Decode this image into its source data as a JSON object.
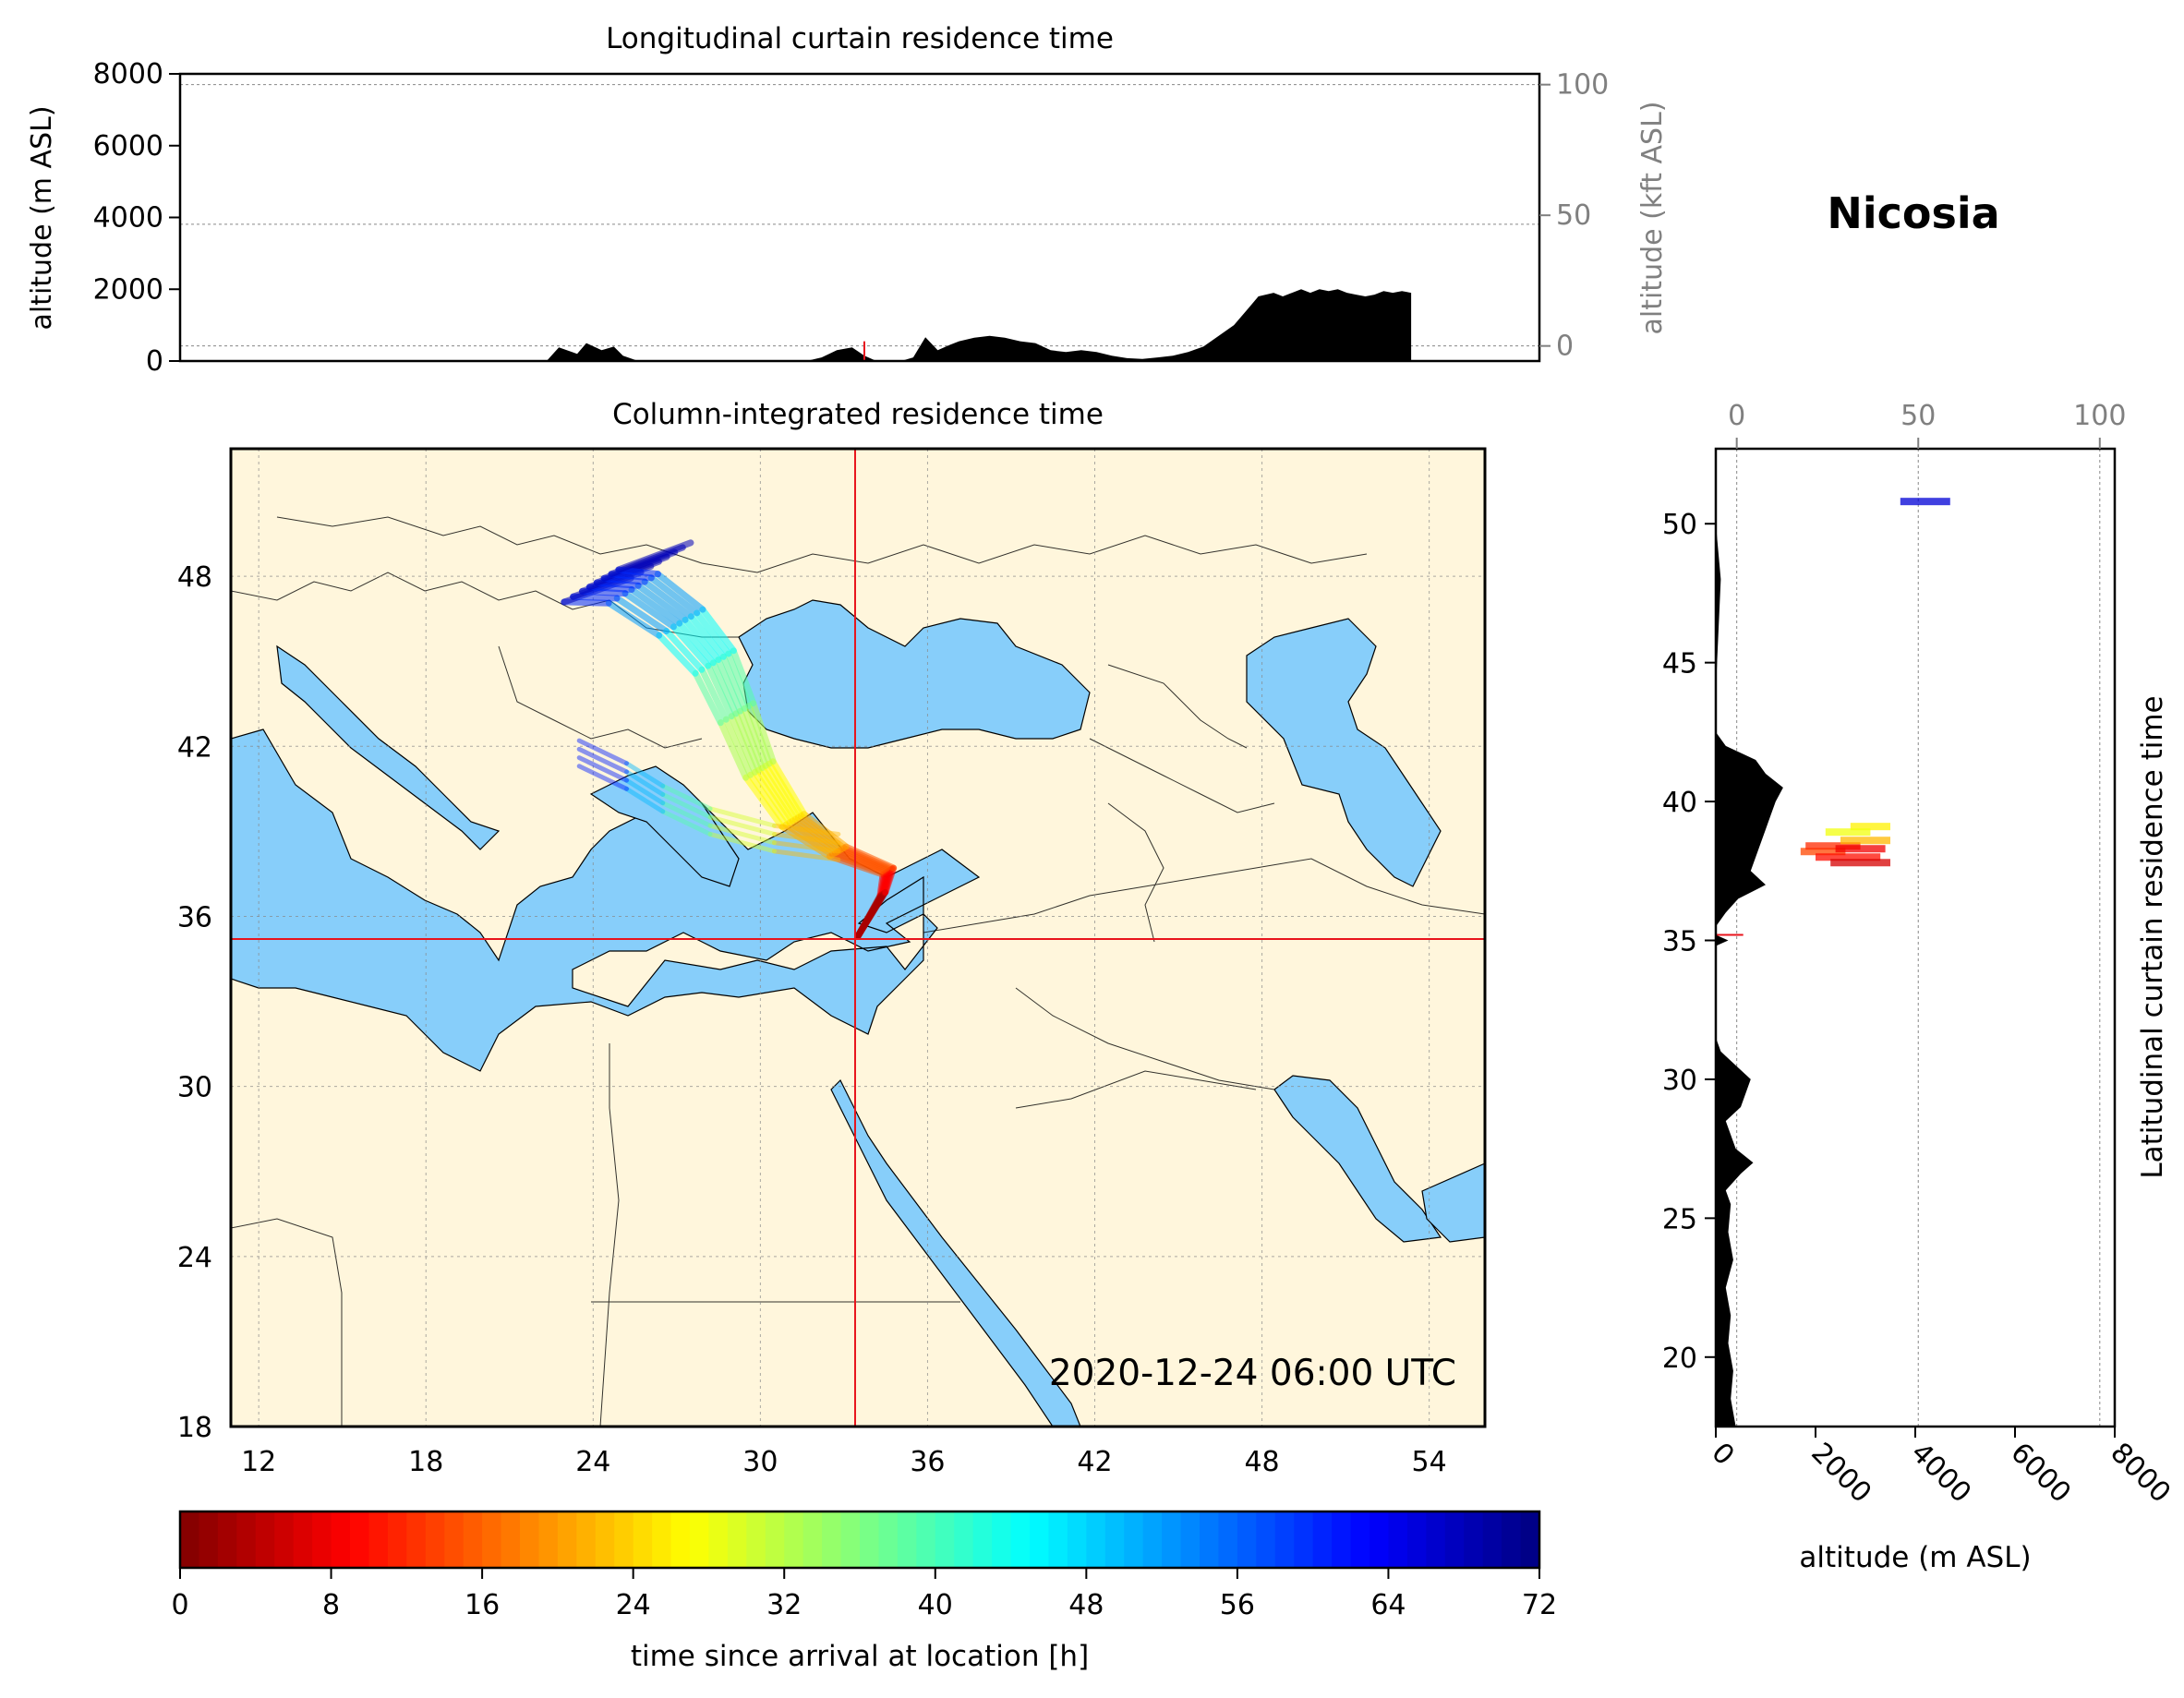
{
  "location_name": "Nicosia",
  "timestamp": "2020-12-24 06:00 UTC",
  "colors": {
    "sea": "#87cefa",
    "land": "#fff6dc",
    "crosshair": "#e8141c",
    "terrain": "#000000"
  },
  "chart_data": [
    {
      "id": "longitudinal",
      "type": "area",
      "title": "Longitudinal curtain residence time",
      "xlabel": "",
      "ylabel": "altitude (m ASL)",
      "ylabel_right": "altitude (kft ASL)",
      "ylim": [
        0,
        8000
      ],
      "yticks": [
        "0",
        "2000",
        "4000",
        "6000",
        "8000"
      ],
      "yticks_right": [
        "0",
        "50",
        "100"
      ],
      "xlim": [
        11,
        55.5
      ],
      "terrain_profile": {
        "x": [
          11,
          23.0,
          23.4,
          24.0,
          24.3,
          24.8,
          25.2,
          25.5,
          26.0,
          31.5,
          32.0,
          32.5,
          33.0,
          33.4,
          33.8,
          34.6,
          35.0,
          35.4,
          35.8,
          36.2,
          36.5,
          37.0,
          37.5,
          38.0,
          38.5,
          39.0,
          39.5,
          40.0,
          40.5,
          41.0,
          41.5,
          42.0,
          42.5,
          43.0,
          43.5,
          44.0,
          44.5,
          45.0,
          45.5,
          46.0,
          46.3,
          46.8,
          47.1,
          47.4,
          47.7,
          48.0,
          48.3,
          48.6,
          48.9,
          49.2,
          49.5,
          49.8,
          50.1,
          50.4,
          50.7,
          51.0,
          51.3,
          51.3,
          55.5
        ],
        "y": [
          0,
          0,
          380,
          200,
          500,
          300,
          400,
          150,
          0,
          0,
          100,
          300,
          380,
          150,
          0,
          0,
          100,
          660,
          300,
          450,
          550,
          650,
          700,
          650,
          550,
          500,
          300,
          250,
          300,
          250,
          150,
          80,
          60,
          100,
          150,
          250,
          400,
          700,
          1000,
          1500,
          1800,
          1900,
          1800,
          1900,
          2000,
          1900,
          2000,
          1950,
          2000,
          1900,
          1850,
          1800,
          1850,
          1950,
          1900,
          1950,
          1900,
          0,
          0
        ]
      },
      "reference_lines_m": [
        420,
        7700
      ]
    },
    {
      "id": "map",
      "type": "scatter",
      "title": "Column-integrated residence time",
      "xlabel": "",
      "ylabel": "",
      "xlim": [
        11,
        56
      ],
      "ylim": [
        18,
        52.5
      ],
      "xticks": [
        "12",
        "18",
        "24",
        "30",
        "36",
        "42",
        "48",
        "54"
      ],
      "yticks": [
        "18",
        "24",
        "30",
        "36",
        "42",
        "48"
      ],
      "crosshair": {
        "lon": 33.4,
        "lat": 35.2
      },
      "grid": true,
      "trajectory_bundle": [
        {
          "hours": 0,
          "lon": 33.5,
          "lat": 35.3
        },
        {
          "hours": 6,
          "lon": 34.4,
          "lat": 36.8
        },
        {
          "hours": 12,
          "lon": 34.6,
          "lat": 37.6
        },
        {
          "hours": 18,
          "lon": 32.8,
          "lat": 38.3
        },
        {
          "hours": 24,
          "lon": 31.2,
          "lat": 39.4
        },
        {
          "hours": 30,
          "lon": 30.0,
          "lat": 41.2
        },
        {
          "hours": 36,
          "lon": 29.2,
          "lat": 43.2
        },
        {
          "hours": 42,
          "lon": 28.4,
          "lat": 45.0
        },
        {
          "hours": 48,
          "lon": 27.2,
          "lat": 46.4
        },
        {
          "hours": 56,
          "lon": 25.5,
          "lat": 47.6
        },
        {
          "hours": 64,
          "lon": 24.0,
          "lat": 47.7
        },
        {
          "hours": 72,
          "lon": 26.5,
          "lat": 48.6
        }
      ]
    },
    {
      "id": "latitudinal",
      "type": "area",
      "title": "Latitudinal curtain residence time",
      "xlabel": "altitude (m ASL)",
      "xlabel_top": "",
      "ylabel": "Latitudinal curtain residence time",
      "xlim": [
        0,
        8000
      ],
      "xticks": [
        "0",
        "2000",
        "4000",
        "6000",
        "8000"
      ],
      "xticks_top": [
        "0",
        "50",
        "100"
      ],
      "yticks": [
        "20",
        "25",
        "30",
        "35",
        "40",
        "45",
        "50"
      ],
      "ylim": [
        17.5,
        52.7
      ],
      "terrain_profile": {
        "lat": [
          17.5,
          18.5,
          19.5,
          20.5,
          21.5,
          22.5,
          23.5,
          24.5,
          25.5,
          26.0,
          26.6,
          27.0,
          27.5,
          28.0,
          28.5,
          29.0,
          29.5,
          30.0,
          30.5,
          31.0,
          31.5,
          33.5,
          34.8,
          35.0,
          35.2,
          35.5,
          36.0,
          36.5,
          37.0,
          37.5,
          38.0,
          38.5,
          39.0,
          39.5,
          40.0,
          40.5,
          41.0,
          41.5,
          42.0,
          42.5,
          44.0,
          46.0,
          48.0,
          50.0,
          52.7
        ],
        "alt": [
          400,
          300,
          350,
          250,
          300,
          200,
          350,
          250,
          300,
          200,
          500,
          750,
          400,
          300,
          200,
          500,
          600,
          700,
          400,
          100,
          0,
          0,
          0,
          250,
          0,
          0,
          200,
          450,
          1000,
          700,
          800,
          900,
          1000,
          1100,
          1200,
          1350,
          1000,
          800,
          200,
          0,
          0,
          50,
          100,
          0,
          0
        ]
      }
    },
    {
      "id": "colorbar",
      "type": "heatmap",
      "xlabel": "time since arrival at location [h]",
      "range": [
        0,
        72
      ],
      "ticks": [
        "0",
        "8",
        "16",
        "24",
        "32",
        "40",
        "48",
        "56",
        "64",
        "72"
      ],
      "colormap": "jet_r"
    }
  ]
}
